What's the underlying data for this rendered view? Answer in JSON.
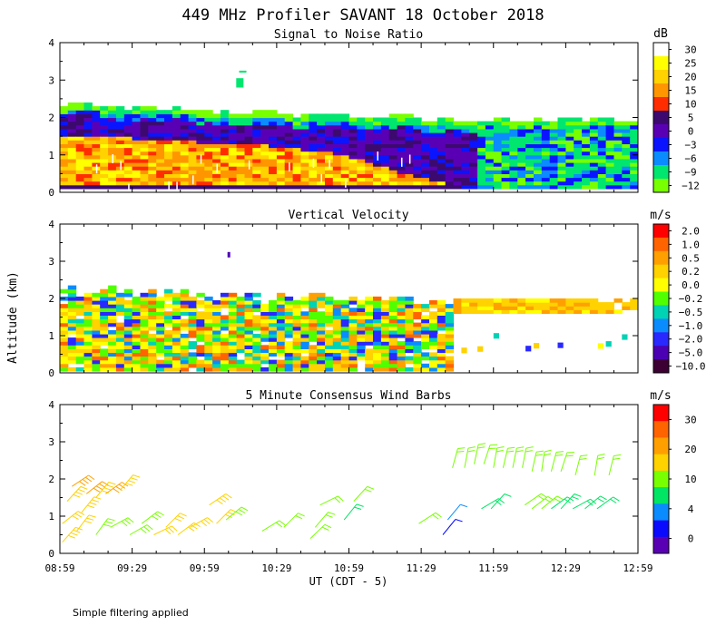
{
  "figure": {
    "title": "449 MHz Profiler SAVANT 18 October 2018",
    "ylabel": "Altitude (km)",
    "xlabel": "UT  (CDT - 5)",
    "footnote": "Simple filtering applied",
    "x_ticks": [
      "08:59",
      "09:29",
      "09:59",
      "10:29",
      "10:59",
      "11:29",
      "11:59",
      "12:29",
      "12:59"
    ],
    "y_ticks": [
      "0",
      "1",
      "2",
      "3",
      "4"
    ]
  },
  "chart_data": [
    {
      "type": "heatmap",
      "title": "Signal to Noise Ratio",
      "units": "dB",
      "ylim": [
        0,
        4
      ],
      "xlim": [
        "08:59",
        "12:59"
      ],
      "colorbar_labels": [
        "30",
        "25",
        "20",
        "15",
        "10",
        "5",
        "0",
        "−3",
        "−6",
        "−9",
        "−12"
      ],
      "colorbar_colors": [
        "#ffffff",
        "#ffff00",
        "#ffd200",
        "#ff9600",
        "#ff2d00",
        "#3c0a6e",
        "#5a00b4",
        "#0a14ff",
        "#0a8cff",
        "#00e66e",
        "#78ff00"
      ],
      "echo_top_km": [
        2.3,
        2.3,
        2.2,
        2.2,
        2.1,
        2.1,
        2.1,
        2.0,
        2.0,
        2.0,
        2.0,
        1.9,
        1.9,
        1.9,
        1.9,
        1.9,
        1.9,
        1.9
      ],
      "strong_top_km": [
        1.5,
        1.5,
        1.4,
        1.4,
        1.3,
        1.3,
        1.2,
        1.1,
        1.0,
        0.8,
        0.5,
        0.3,
        0,
        0,
        0,
        0,
        0,
        0
      ]
    },
    {
      "type": "heatmap",
      "title": "Vertical Velocity",
      "units": "m/s",
      "ylim": [
        0,
        4
      ],
      "xlim": [
        "08:59",
        "12:59"
      ],
      "colorbar_labels": [
        "2.0",
        "1.0",
        "0.5",
        "0.2",
        "0.0",
        "−0.2",
        "−0.5",
        "−1.0",
        "−2.0",
        "−5.0",
        "−10.0"
      ],
      "colorbar_colors": [
        "#ff0000",
        "#ff6400",
        "#ffa000",
        "#ffd200",
        "#ffff00",
        "#50ff00",
        "#00d2b4",
        "#0a8cff",
        "#2828ff",
        "#4b00b4",
        "#3c0032"
      ]
    },
    {
      "type": "wind_barbs",
      "title": "5 Minute Consensus Wind Barbs",
      "units": "m/s",
      "ylim": [
        0,
        4
      ],
      "xlim": [
        "08:59",
        "12:59"
      ],
      "colorbar_labels": [
        "30",
        "20",
        "10",
        "4",
        "0"
      ],
      "colorbar_colors": [
        "#ff0000",
        "#ff6400",
        "#ffa000",
        "#ffd200",
        "#78ff00",
        "#00e664",
        "#0a8cff",
        "#0a0aff",
        "#5a00b4"
      ],
      "barbs": [
        {
          "t": "09:00",
          "alt": 0.3,
          "spd": 18
        },
        {
          "t": "09:00",
          "alt": 0.8,
          "spd": 17
        },
        {
          "t": "09:02",
          "alt": 1.4,
          "spd": 19
        },
        {
          "t": "09:04",
          "alt": 1.8,
          "spd": 20
        },
        {
          "t": "09:06",
          "alt": 0.6,
          "spd": 15
        },
        {
          "t": "09:08",
          "alt": 1.1,
          "spd": 18
        },
        {
          "t": "09:10",
          "alt": 1.6,
          "spd": 20
        },
        {
          "t": "09:14",
          "alt": 1.5,
          "spd": 19
        },
        {
          "t": "09:18",
          "alt": 1.6,
          "spd": 20
        },
        {
          "t": "09:24",
          "alt": 1.7,
          "spd": 19
        },
        {
          "t": "09:14",
          "alt": 0.5,
          "spd": 14
        },
        {
          "t": "09:20",
          "alt": 0.7,
          "spd": 13
        },
        {
          "t": "09:28",
          "alt": 0.5,
          "spd": 13
        },
        {
          "t": "09:33",
          "alt": 0.8,
          "spd": 14
        },
        {
          "t": "09:38",
          "alt": 0.5,
          "spd": 15
        },
        {
          "t": "09:43",
          "alt": 0.7,
          "spd": 16
        },
        {
          "t": "09:48",
          "alt": 0.5,
          "spd": 15
        },
        {
          "t": "09:53",
          "alt": 0.7,
          "spd": 16
        },
        {
          "t": "10:01",
          "alt": 1.3,
          "spd": 18
        },
        {
          "t": "10:04",
          "alt": 0.8,
          "spd": 15
        },
        {
          "t": "10:08",
          "alt": 0.9,
          "spd": 14
        },
        {
          "t": "10:23",
          "alt": 0.6,
          "spd": 12
        },
        {
          "t": "10:32",
          "alt": 0.7,
          "spd": 11
        },
        {
          "t": "10:43",
          "alt": 0.4,
          "spd": 10
        },
        {
          "t": "10:45",
          "alt": 0.7,
          "spd": 9
        },
        {
          "t": "10:47",
          "alt": 1.3,
          "spd": 10
        },
        {
          "t": "10:57",
          "alt": 0.9,
          "spd": 8
        },
        {
          "t": "11:01",
          "alt": 1.4,
          "spd": 9
        },
        {
          "t": "11:28",
          "alt": 0.8,
          "spd": 9
        },
        {
          "t": "11:38",
          "alt": 0.5,
          "spd": 2
        },
        {
          "t": "11:40",
          "alt": 0.9,
          "spd": 5
        },
        {
          "t": "11:42",
          "alt": 2.3,
          "spd": 12
        },
        {
          "t": "11:47",
          "alt": 2.3,
          "spd": 12
        },
        {
          "t": "11:51",
          "alt": 2.4,
          "spd": 12
        },
        {
          "t": "11:55",
          "alt": 2.4,
          "spd": 11
        },
        {
          "t": "11:59",
          "alt": 2.3,
          "spd": 12
        },
        {
          "t": "12:03",
          "alt": 2.3,
          "spd": 12
        },
        {
          "t": "12:07",
          "alt": 2.3,
          "spd": 11
        },
        {
          "t": "12:11",
          "alt": 2.3,
          "spd": 12
        },
        {
          "t": "12:15",
          "alt": 2.2,
          "spd": 12
        },
        {
          "t": "12:19",
          "alt": 2.2,
          "spd": 11
        },
        {
          "t": "12:23",
          "alt": 2.2,
          "spd": 12
        },
        {
          "t": "12:27",
          "alt": 2.2,
          "spd": 11
        },
        {
          "t": "12:33",
          "alt": 2.1,
          "spd": 12
        },
        {
          "t": "12:41",
          "alt": 2.1,
          "spd": 11
        },
        {
          "t": "12:47",
          "alt": 2.1,
          "spd": 11
        },
        {
          "t": "11:54",
          "alt": 1.2,
          "spd": 8
        },
        {
          "t": "11:58",
          "alt": 1.2,
          "spd": 6
        },
        {
          "t": "12:12",
          "alt": 1.3,
          "spd": 9
        },
        {
          "t": "12:15",
          "alt": 1.2,
          "spd": 9
        },
        {
          "t": "12:19",
          "alt": 1.2,
          "spd": 9
        },
        {
          "t": "12:23",
          "alt": 1.2,
          "spd": 8
        },
        {
          "t": "12:27",
          "alt": 1.2,
          "spd": 8
        },
        {
          "t": "12:32",
          "alt": 1.2,
          "spd": 8
        },
        {
          "t": "12:37",
          "alt": 1.2,
          "spd": 8
        },
        {
          "t": "12:42",
          "alt": 1.2,
          "spd": 8
        }
      ]
    }
  ]
}
